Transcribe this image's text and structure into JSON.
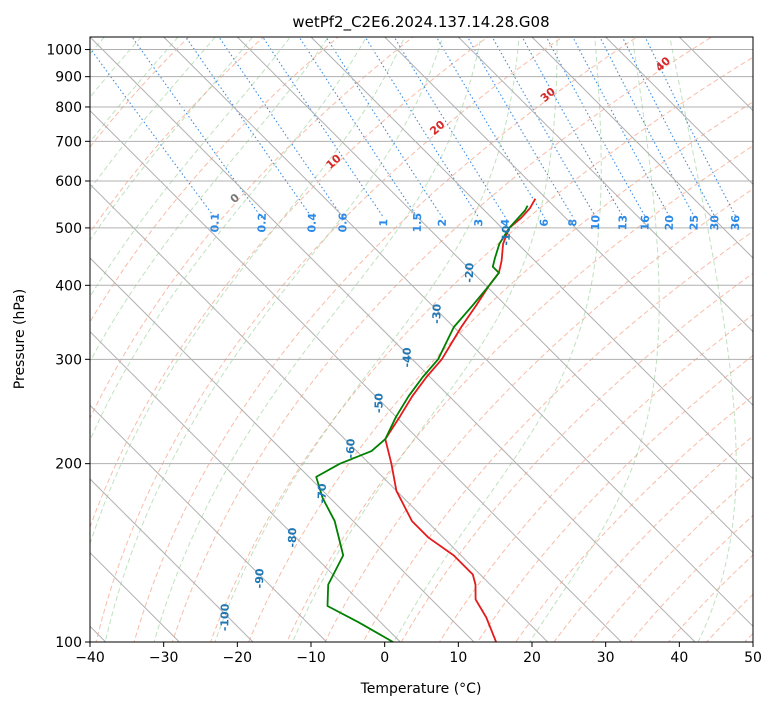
{
  "chart_data": {
    "type": "line",
    "title": "wetPf2_C2E6.2024.137.14.28.G08",
    "xlabel": "Temperature (°C)",
    "ylabel": "Pressure (hPa)",
    "xlim": [
      -40,
      50
    ],
    "ylim": [
      1050,
      100
    ],
    "y_scale": "log",
    "skew": true,
    "x_ticks": [
      -40,
      -30,
      -20,
      -10,
      0,
      10,
      20,
      30,
      40,
      50
    ],
    "y_ticks": [
      1000,
      900,
      800,
      700,
      600,
      500,
      400,
      300,
      200,
      100
    ],
    "grid": true,
    "series": [
      {
        "color": "#e41a1c",
        "points": [
          {
            "p": 560,
            "t": -1.5
          },
          {
            "p": 540,
            "t": -3.5
          },
          {
            "p": 520,
            "t": -6.0
          },
          {
            "p": 500,
            "t": -9.0
          },
          {
            "p": 470,
            "t": -12.0
          },
          {
            "p": 440,
            "t": -14.5
          },
          {
            "p": 420,
            "t": -16.5
          },
          {
            "p": 400,
            "t": -19.5
          },
          {
            "p": 370,
            "t": -24.0
          },
          {
            "p": 340,
            "t": -29.0
          },
          {
            "p": 300,
            "t": -36.0
          },
          {
            "p": 280,
            "t": -40.5
          },
          {
            "p": 260,
            "t": -45.0
          },
          {
            "p": 240,
            "t": -49.5
          },
          {
            "p": 220,
            "t": -54.5
          },
          {
            "p": 200,
            "t": -57.0
          },
          {
            "p": 180,
            "t": -60.0
          },
          {
            "p": 160,
            "t": -62.0
          },
          {
            "p": 150,
            "t": -62.0
          },
          {
            "p": 140,
            "t": -61.0
          },
          {
            "p": 130,
            "t": -61.0
          },
          {
            "p": 125,
            "t": -62.0
          },
          {
            "p": 118,
            "t": -64.0
          },
          {
            "p": 110,
            "t": -65.0
          },
          {
            "p": 100,
            "t": -67.0
          }
        ]
      },
      {
        "color": "#008000",
        "points": [
          {
            "p": 545,
            "t": -3.5
          },
          {
            "p": 535,
            "t": -4.5
          },
          {
            "p": 500,
            "t": -9.0
          },
          {
            "p": 470,
            "t": -12.5
          },
          {
            "p": 445,
            "t": -15.0
          },
          {
            "p": 430,
            "t": -16.5
          },
          {
            "p": 420,
            "t": -16.5
          },
          {
            "p": 400,
            "t": -19.5
          },
          {
            "p": 370,
            "t": -24.5
          },
          {
            "p": 340,
            "t": -30.0
          },
          {
            "p": 300,
            "t": -36.5
          },
          {
            "p": 280,
            "t": -41.0
          },
          {
            "p": 260,
            "t": -45.5
          },
          {
            "p": 240,
            "t": -50.0
          },
          {
            "p": 220,
            "t": -54.5
          },
          {
            "p": 210,
            "t": -58.0
          },
          {
            "p": 200,
            "t": -64.0
          },
          {
            "p": 190,
            "t": -69.0
          },
          {
            "p": 175,
            "t": -71.0
          },
          {
            "p": 160,
            "t": -72.5
          },
          {
            "p": 140,
            "t": -76.0
          },
          {
            "p": 125,
            "t": -82.0
          },
          {
            "p": 115,
            "t": -85.0
          },
          {
            "p": 108,
            "t": -83.0
          },
          {
            "p": 100,
            "t": -81.0
          }
        ]
      }
    ],
    "isotherm_labels": [
      "-100",
      "-90",
      "-80",
      "-70",
      "-60",
      "-50",
      "-40",
      "-30",
      "-20",
      "-10"
    ],
    "mixing_ratio_labels": [
      "0.1",
      "0.2",
      "0.4",
      "0.6",
      "1",
      "1.5",
      "2",
      "3",
      "4",
      "6",
      "8",
      "10",
      "13",
      "16",
      "20",
      "25",
      "30",
      "36"
    ],
    "dry_adiabat_labels": [
      "0",
      "10",
      "20",
      "30",
      "40"
    ]
  }
}
